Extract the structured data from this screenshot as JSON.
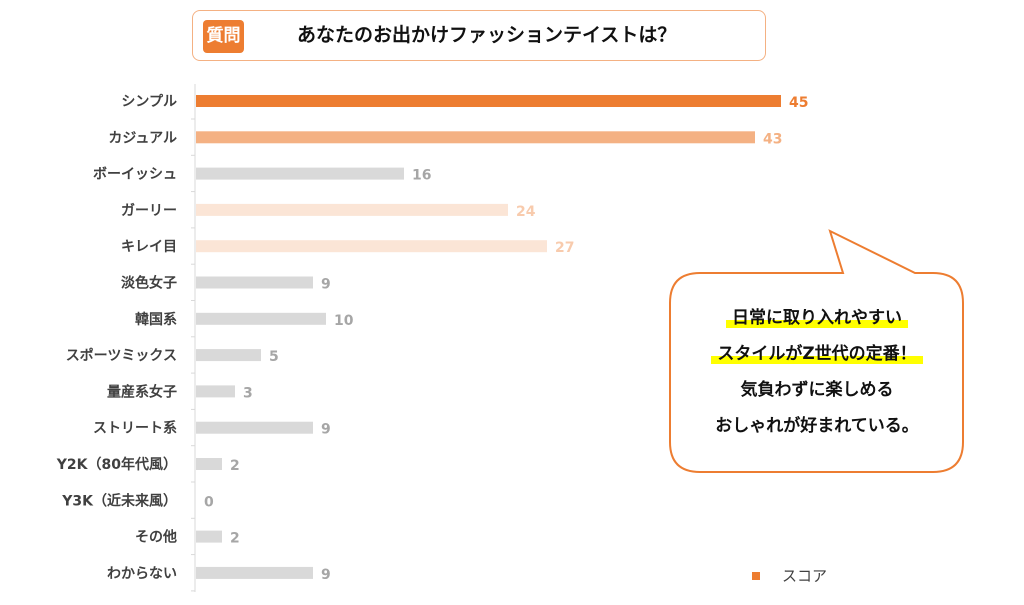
{
  "header": {
    "badge": "質問",
    "title": "あなたのお出かけファッションテイストは？"
  },
  "chart_data": {
    "type": "bar",
    "orientation": "horizontal",
    "categories": [
      "シンプル",
      "カジュアル",
      "ボーイッシュ",
      "ガーリー",
      "キレイ目",
      "淡色女子",
      "韓国系",
      "スポーツミックス",
      "量産系女子",
      "ストリート系",
      "Y2K（80年代風）",
      "Y3K（近未来風）",
      "その他",
      "わからない"
    ],
    "series": [
      {
        "name": "スコア",
        "values": [
          45,
          43,
          16,
          24,
          27,
          9,
          10,
          5,
          3,
          9,
          2,
          0,
          2,
          9
        ]
      }
    ],
    "bar_colors": [
      "#ED7D31",
      "#F4B183",
      "#D9D9D9",
      "#FBE5D6",
      "#FBE5D6",
      "#D9D9D9",
      "#D9D9D9",
      "#D9D9D9",
      "#D9D9D9",
      "#D9D9D9",
      "#D9D9D9",
      "#D9D9D9",
      "#D9D9D9",
      "#D9D9D9"
    ],
    "label_colors": [
      "#ED7D31",
      "#F4B183",
      "#A6A6A6",
      "#F8CBAD",
      "#F8CBAD",
      "#A6A6A6",
      "#A6A6A6",
      "#A6A6A6",
      "#A6A6A6",
      "#A6A6A6",
      "#A6A6A6",
      "#A6A6A6",
      "#A6A6A6",
      "#A6A6A6"
    ],
    "xlim": [
      0,
      45
    ],
    "grid": false,
    "legend": "bottom-right"
  },
  "callout": {
    "lines": [
      "日常に取り入れやすい",
      "スタイルがZ世代の定番！",
      "気負わずに楽しめる",
      "おしゃれが好まれている。"
    ],
    "highlight_color": "#FFFF00",
    "border_color": "#ED7D31"
  },
  "legend": {
    "label": "スコア"
  }
}
